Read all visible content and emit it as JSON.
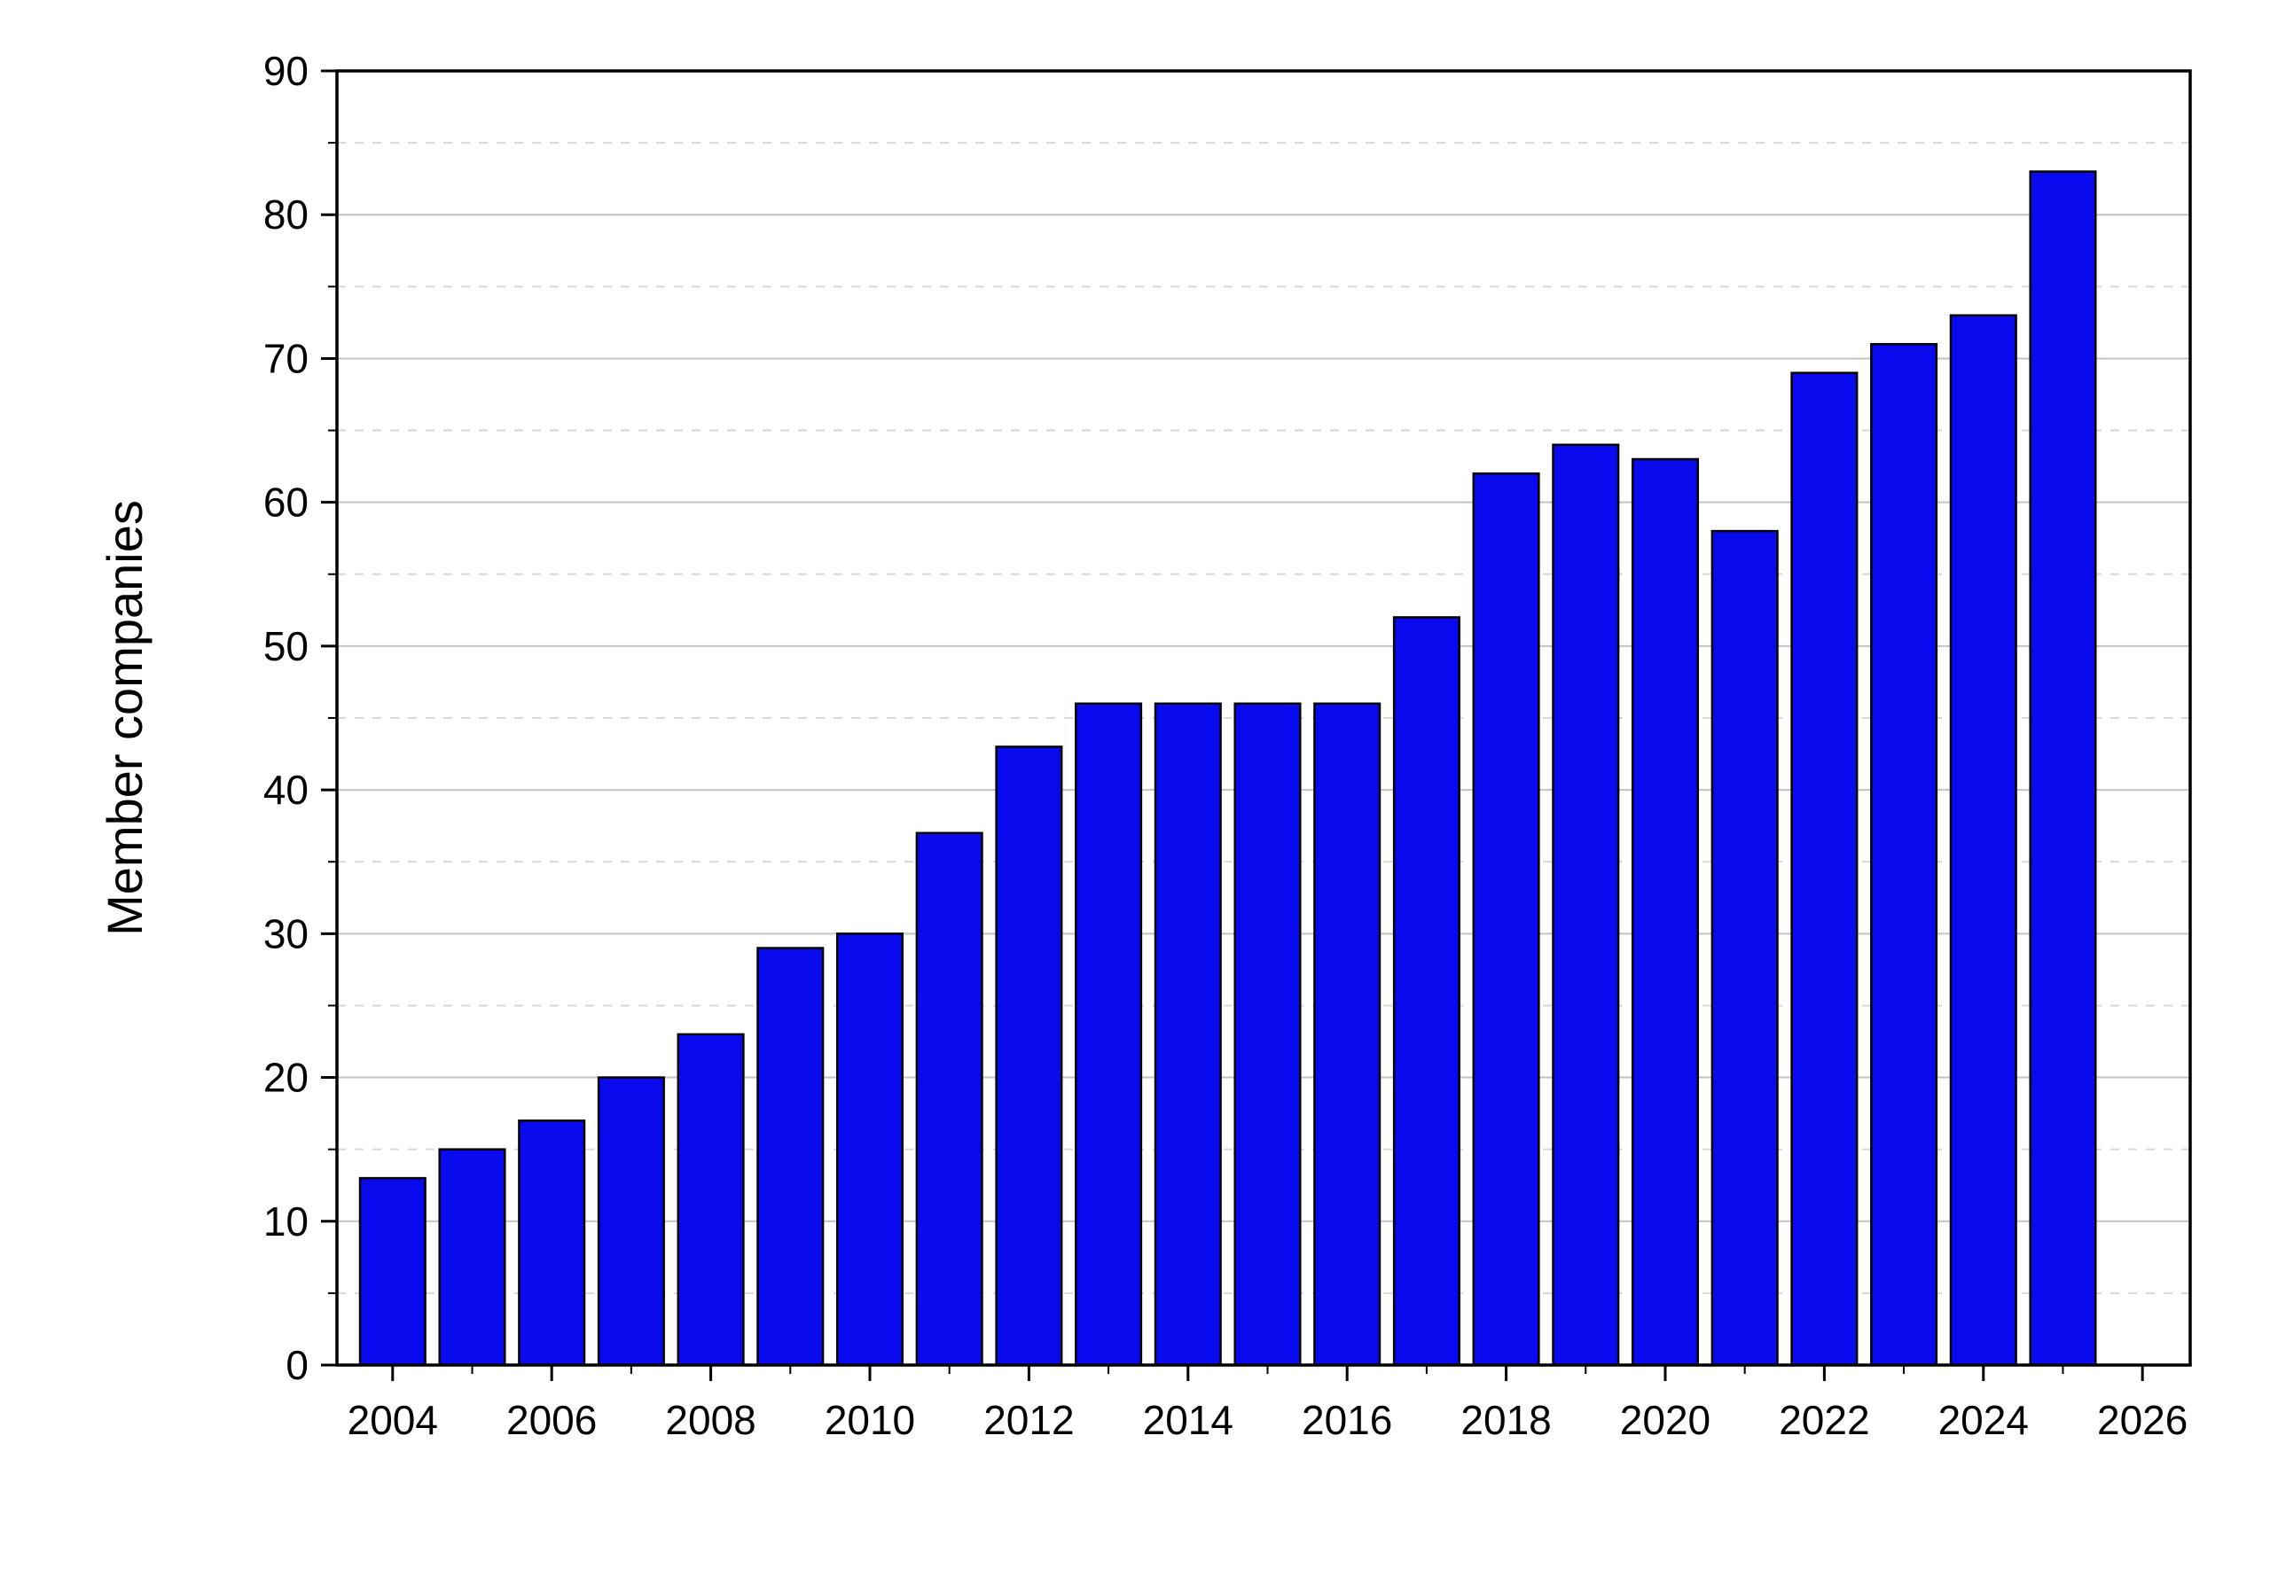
{
  "chart_data": {
    "type": "bar",
    "categories": [
      2004,
      2005,
      2006,
      2007,
      2008,
      2009,
      2010,
      2011,
      2012,
      2013,
      2014,
      2015,
      2016,
      2017,
      2018,
      2019,
      2020,
      2021,
      2022,
      2023,
      2024,
      2025
    ],
    "values": [
      13,
      15,
      17,
      20,
      23,
      29,
      30,
      37,
      43,
      46,
      46,
      46,
      46,
      52,
      62,
      64,
      63,
      58,
      69,
      71,
      73,
      83
    ],
    "title": "",
    "xlabel": "",
    "ylabel": "Member companies",
    "xlim": [
      2003.3,
      2026.6
    ],
    "ylim": [
      0,
      90
    ],
    "x_ticks": [
      2004,
      2006,
      2008,
      2010,
      2012,
      2014,
      2016,
      2018,
      2020,
      2022,
      2024,
      2026
    ],
    "x_minor_step": 1,
    "y_ticks": [
      0,
      10,
      20,
      30,
      40,
      50,
      60,
      70,
      80,
      90
    ],
    "y_minor_ticks": [
      5,
      15,
      25,
      35,
      45,
      55,
      65,
      75,
      85
    ],
    "grid": {
      "major_style": "solid",
      "minor_style": "dashed",
      "legend": "none"
    },
    "bar_width_fraction": 0.82,
    "colors": {
      "bar_fill": "#0a0aee",
      "bar_edge": "#000000",
      "frame": "#000000",
      "grid_major": "#c3c3c3",
      "grid_minor": "#d9d9d9",
      "background": "#ffffff"
    }
  }
}
